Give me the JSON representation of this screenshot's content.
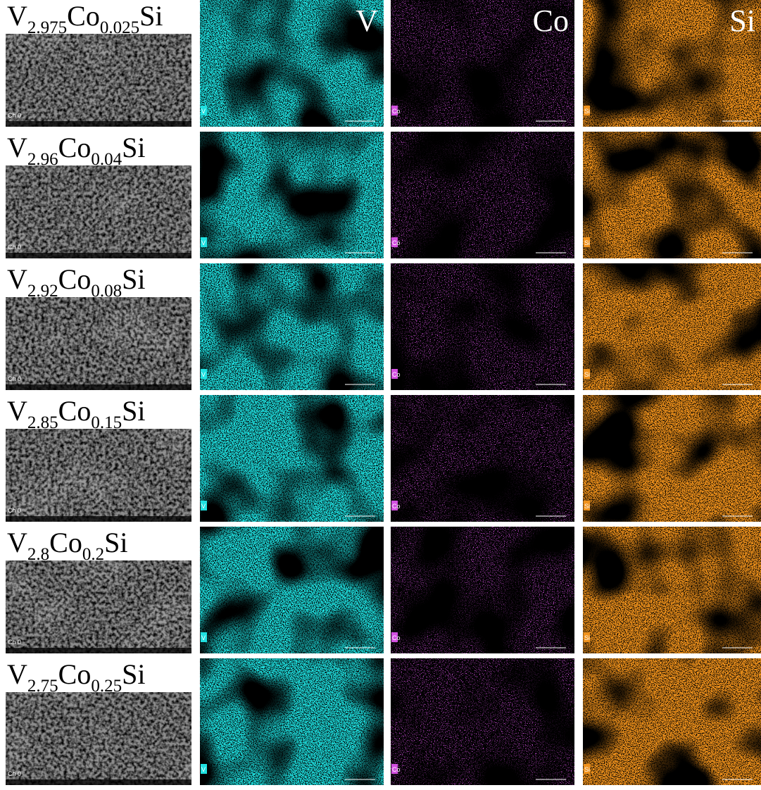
{
  "figure": {
    "column_labels": [
      "V",
      "Co",
      "Si"
    ],
    "sem_label": "Ch 0",
    "rows": [
      {
        "element1": "V",
        "sub1": "2.975",
        "element2": "Co",
        "sub2": "0.025",
        "element3": "Si"
      },
      {
        "element1": "V",
        "sub1": "2.96",
        "element2": "Co",
        "sub2": "0.04",
        "element3": "Si"
      },
      {
        "element1": "V",
        "sub1": "2.92",
        "element2": "Co",
        "sub2": "0.08",
        "element3": "Si"
      },
      {
        "element1": "V",
        "sub1": "2.85",
        "element2": "Co",
        "sub2": "0.15",
        "element3": "Si"
      },
      {
        "element1": "V",
        "sub1": "2.8",
        "element2": "Co",
        "sub2": "0.2",
        "element3": "Si"
      },
      {
        "element1": "V",
        "sub1": "2.75",
        "element2": "Co",
        "sub2": "0.25",
        "element3": "Si"
      }
    ]
  }
}
